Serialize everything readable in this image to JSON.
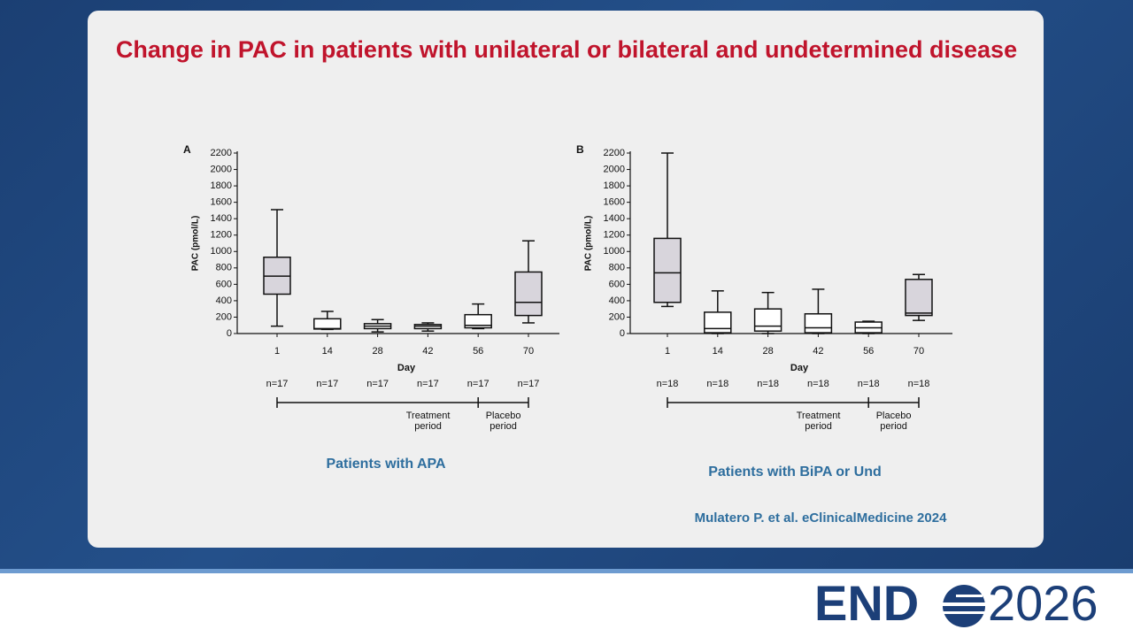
{
  "slide_title": "Change in PAC in patients with unilateral or bilateral and undetermined disease",
  "chart_data": [
    {
      "type": "box",
      "panel": "A",
      "y_label": "PAC (pmol/L)",
      "x_label": "Day",
      "caption": "Patients with APA",
      "categories": [
        "1",
        "14",
        "28",
        "42",
        "56",
        "70"
      ],
      "n_labels": [
        "n=17",
        "n=17",
        "n=17",
        "n=17",
        "n=17",
        "n=17"
      ],
      "min": [
        90,
        50,
        20,
        30,
        60,
        130
      ],
      "q1": [
        480,
        55,
        60,
        60,
        70,
        220
      ],
      "median": [
        700,
        60,
        90,
        90,
        100,
        380
      ],
      "q3": [
        930,
        180,
        120,
        110,
        230,
        750
      ],
      "max": [
        1510,
        270,
        170,
        130,
        360,
        1130
      ],
      "box_colors": [
        "#d8d5dc",
        "#ffffff",
        "#ffffff",
        "#ffffff",
        "#ffffff",
        "#d8d5dc"
      ],
      "periods": [
        [
          "Treatment",
          "period"
        ],
        [
          "Placebo",
          "period"
        ]
      ],
      "ylim": [
        0,
        2200
      ],
      "yticks": [
        0,
        200,
        400,
        600,
        800,
        1000,
        1200,
        1400,
        1600,
        1800,
        2000,
        2200
      ]
    },
    {
      "type": "box",
      "panel": "B",
      "y_label": "PAC (pmol/L)",
      "x_label": "Day",
      "caption": "Patients with BiPA or Und",
      "categories": [
        "1",
        "14",
        "28",
        "42",
        "56",
        "70"
      ],
      "n_labels": [
        "n=18",
        "n=18",
        "n=18",
        "n=18",
        "n=18",
        "n=18"
      ],
      "min": [
        330,
        0,
        0,
        0,
        0,
        160
      ],
      "q1": [
        380,
        10,
        30,
        10,
        10,
        220
      ],
      "median": [
        740,
        60,
        90,
        70,
        70,
        250
      ],
      "q3": [
        1160,
        260,
        300,
        240,
        140,
        660
      ],
      "max": [
        2200,
        520,
        500,
        540,
        150,
        720
      ],
      "box_colors": [
        "#d8d5dc",
        "#ffffff",
        "#ffffff",
        "#ffffff",
        "#ffffff",
        "#d8d5dc"
      ],
      "periods": [
        [
          "Treatment",
          "period"
        ],
        [
          "Placebo",
          "period"
        ]
      ],
      "ylim": [
        0,
        2200
      ],
      "yticks": [
        0,
        200,
        400,
        600,
        800,
        1000,
        1200,
        1400,
        1600,
        1800,
        2000,
        2200
      ]
    }
  ],
  "citation": "Mulatero P. et al. eClinicalMedicine 2024",
  "logo": {
    "left": "END",
    "right": "2026"
  }
}
